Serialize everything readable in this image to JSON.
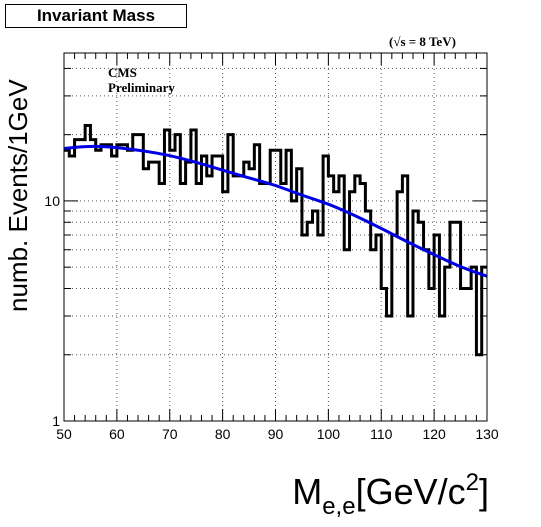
{
  "chart_data": {
    "type": "histogram",
    "title": "Invariant Mass",
    "energy_label": "(√s = 8 TeV)",
    "experiment_label": "CMS",
    "status_label": "Preliminary",
    "ylabel": "numb. Events/1GeV",
    "xlabel": "M",
    "xlabel_sub": "e,e",
    "xlabel_unit": "[GeV/c",
    "xlabel_sup": "2",
    "xlabel_close": "]",
    "xlim": [
      50,
      130
    ],
    "ylim": [
      1,
      47
    ],
    "yscale": "log",
    "grid": true,
    "x_tick_labels": [
      "50",
      "60",
      "70",
      "80",
      "90",
      "100",
      "110",
      "120",
      "130"
    ],
    "y_tick_labels": [
      "1",
      "10"
    ],
    "bin_width": 1,
    "bin_low_edges": [
      50,
      51,
      52,
      53,
      54,
      55,
      56,
      57,
      58,
      59,
      60,
      61,
      62,
      63,
      64,
      65,
      66,
      67,
      68,
      69,
      70,
      71,
      72,
      73,
      74,
      75,
      76,
      77,
      78,
      79,
      80,
      81,
      82,
      83,
      84,
      85,
      86,
      87,
      88,
      89,
      90,
      91,
      92,
      93,
      94,
      95,
      96,
      97,
      98,
      99,
      100,
      101,
      102,
      103,
      104,
      105,
      106,
      107,
      108,
      109,
      110,
      111,
      112,
      113,
      114,
      115,
      116,
      117,
      118,
      119,
      120,
      121,
      122,
      123,
      124,
      125,
      126,
      127,
      128,
      129
    ],
    "counts": [
      17,
      16,
      19,
      19,
      22,
      19,
      17,
      18,
      18,
      16,
      18,
      18,
      17,
      20,
      20,
      14,
      15,
      15,
      12,
      21,
      17,
      20,
      12,
      15,
      21,
      12,
      16,
      13,
      16,
      16,
      11,
      20,
      13,
      13,
      15,
      14,
      18,
      12,
      12,
      17,
      17,
      12,
      17,
      10,
      14,
      7,
      8,
      9,
      7,
      16,
      13,
      11,
      13,
      6,
      11,
      13,
      12,
      9,
      6,
      7,
      4,
      3,
      7,
      11,
      13,
      3,
      9,
      8,
      6,
      4,
      7,
      3,
      5,
      8,
      8,
      4,
      4,
      5,
      2,
      5
    ],
    "fit": {
      "color": "#0000e6",
      "points": [
        [
          50,
          17.3
        ],
        [
          55,
          17.8
        ],
        [
          60,
          17.5
        ],
        [
          65,
          16.9
        ],
        [
          70,
          16.1
        ],
        [
          75,
          15.0
        ],
        [
          80,
          13.8
        ],
        [
          85,
          12.7
        ],
        [
          90,
          11.8
        ],
        [
          95,
          10.6
        ],
        [
          100,
          9.7
        ],
        [
          105,
          8.6
        ],
        [
          110,
          7.5
        ],
        [
          115,
          6.5
        ],
        [
          120,
          5.7
        ],
        [
          125,
          5.0
        ],
        [
          130,
          4.55
        ]
      ]
    }
  }
}
